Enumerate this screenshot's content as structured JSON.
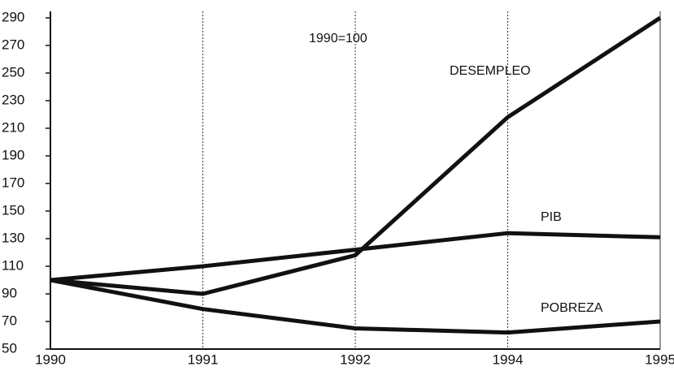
{
  "chart_data": {
    "type": "line",
    "annotation": "1990=100",
    "categories": [
      "1990",
      "1991",
      "1992",
      "1994",
      "1995"
    ],
    "series": [
      {
        "name": "DESEMPLEO",
        "color": "#111111",
        "values": [
          100,
          90,
          118,
          218,
          290
        ]
      },
      {
        "name": "PIB",
        "color": "#111111",
        "values": [
          100,
          110,
          122,
          134,
          131
        ]
      },
      {
        "name": "POBREZA",
        "color": "#111111",
        "values": [
          100,
          79,
          65,
          62,
          70
        ]
      }
    ],
    "ylim": [
      50,
      290
    ],
    "yticks": [
      50,
      70,
      90,
      110,
      130,
      150,
      170,
      190,
      210,
      230,
      250,
      270,
      290
    ],
    "grid": true
  }
}
